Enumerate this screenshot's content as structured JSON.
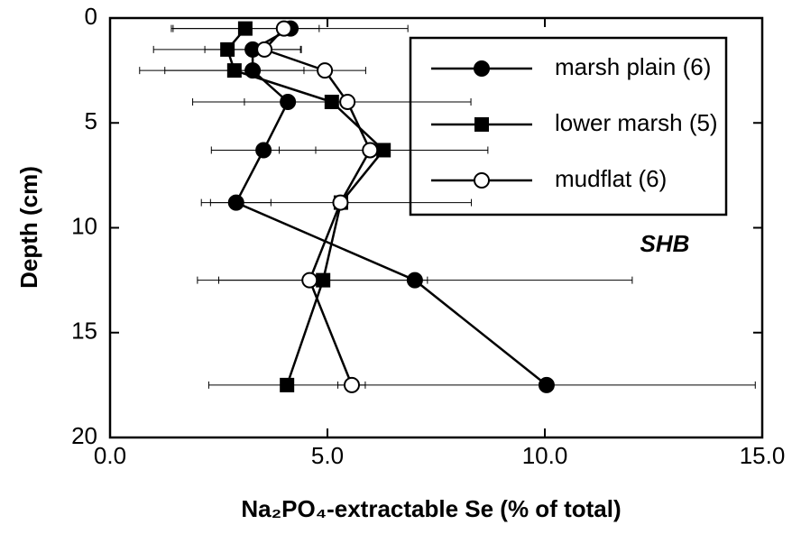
{
  "chart_data": {
    "type": "line",
    "xlabel": "Na₂PO₄-extractable Se (% of total)",
    "ylabel": "Depth (cm)",
    "annotation": "SHB",
    "depth": [
      0.5,
      1.5,
      2.5,
      4,
      6.3,
      8.8,
      12.5,
      17.5
    ],
    "series": [
      {
        "name": "marsh plain (6)",
        "color": "#000000",
        "marker": "filled-circle",
        "values": [
          4.15,
          3.28,
          3.28,
          4.09,
          3.53,
          2.9,
          7.01,
          10.04
        ],
        "errors": [
          2.7,
          1.1,
          2.6,
          1.0,
          1.2,
          0.8,
          5.0,
          4.8
        ]
      },
      {
        "name": "lower marsh (5)",
        "color": "#000000",
        "marker": "filled-square",
        "values": [
          3.11,
          2.7,
          2.86,
          5.1,
          6.29,
          5.31,
          4.9,
          4.07
        ],
        "errors": [
          1.7,
          1.7,
          1.6,
          3.2,
          2.4,
          3.0,
          2.4,
          1.8
        ]
      },
      {
        "name": "mudflat (6)",
        "color": "#000000",
        "marker": "open-circle",
        "values": [
          4.0,
          3.55,
          4.94,
          5.46,
          5.98,
          5.3,
          4.59,
          5.56
        ]
      }
    ],
    "xlim": [
      0,
      15
    ],
    "xticks": [
      {
        "value": 0,
        "label": "0.0"
      },
      {
        "value": 5,
        "label": "5.0"
      },
      {
        "value": 10,
        "label": "10.0"
      },
      {
        "value": 15,
        "label": "15.0"
      }
    ],
    "ylim": [
      0,
      20
    ],
    "yinverted": true,
    "yticks": [
      0,
      5,
      10,
      15,
      20
    ],
    "grid": false,
    "legend": "upper right"
  }
}
